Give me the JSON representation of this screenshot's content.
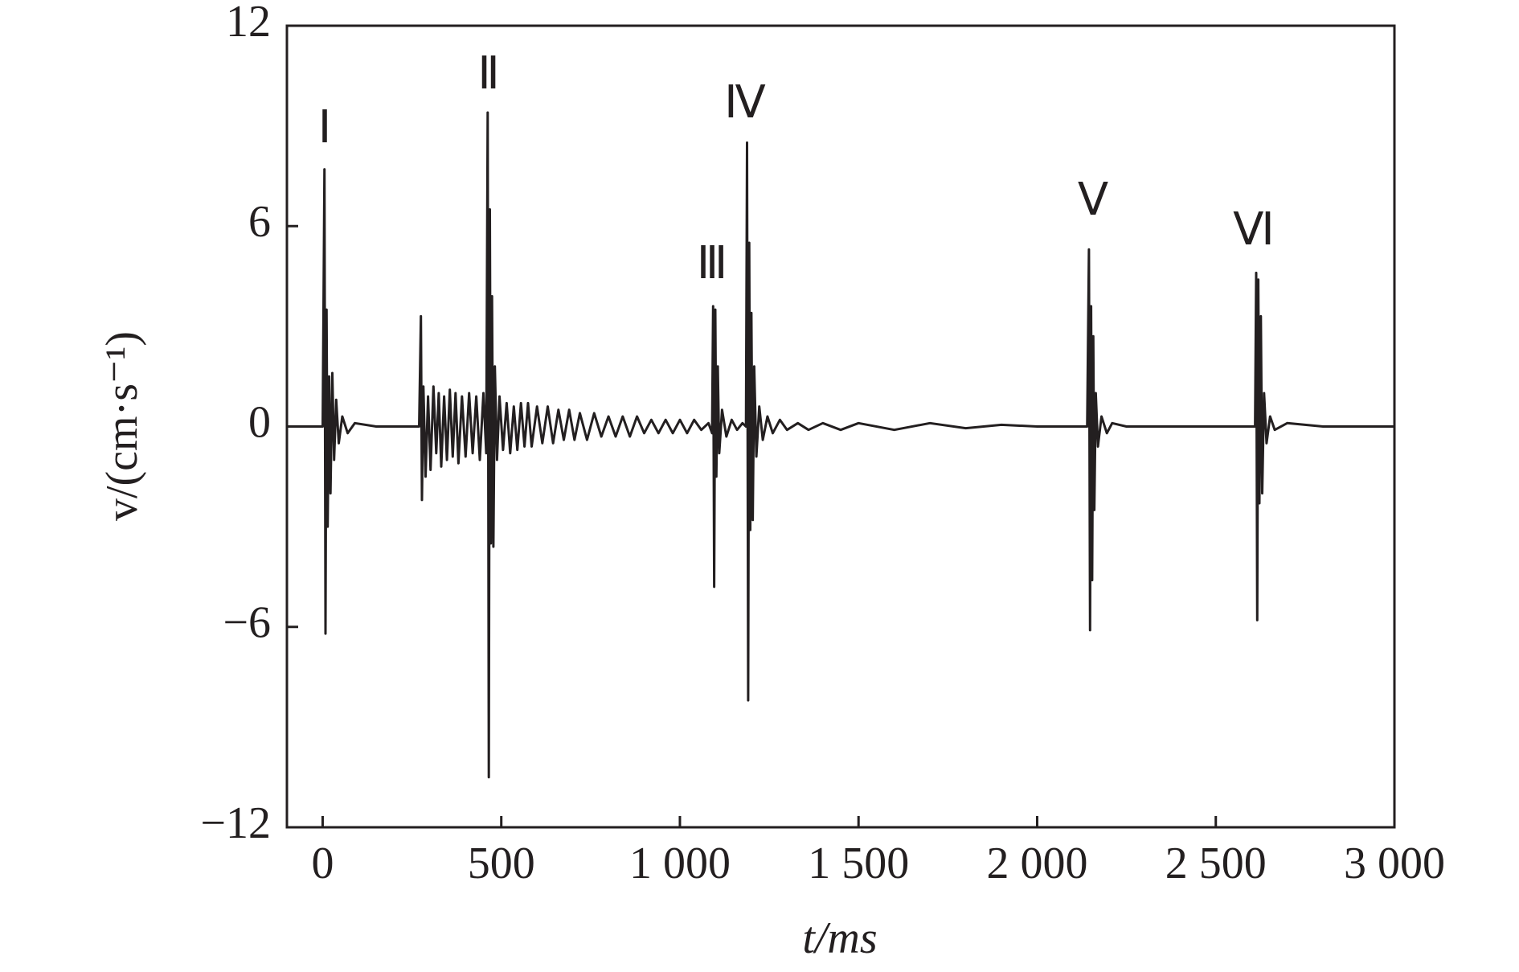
{
  "chart_data": {
    "type": "line",
    "x_label": "t/ms",
    "y_label": "v/(cm·s⁻¹)",
    "annotations": [
      "Ⅰ",
      "Ⅱ",
      "Ⅲ",
      "Ⅳ",
      "Ⅴ",
      "Ⅵ"
    ],
    "color": "#231f20",
    "x": [
      -100,
      -50,
      0,
      5,
      8,
      11,
      14,
      18,
      22,
      27,
      32,
      38,
      45,
      55,
      70,
      90,
      150,
      200,
      270,
      275,
      278,
      282,
      288,
      295,
      302,
      310,
      318,
      325,
      332,
      340,
      348,
      356,
      364,
      372,
      380,
      390,
      400,
      410,
      420,
      430,
      440,
      450,
      458,
      462,
      465,
      468,
      471,
      474,
      478,
      482,
      488,
      495,
      505,
      515,
      525,
      535,
      545,
      555,
      565,
      575,
      585,
      600,
      615,
      630,
      645,
      660,
      675,
      690,
      705,
      720,
      740,
      760,
      780,
      800,
      820,
      840,
      860,
      880,
      900,
      920,
      940,
      960,
      980,
      1000,
      1020,
      1040,
      1060,
      1080,
      1090,
      1093,
      1096,
      1099,
      1102,
      1106,
      1110,
      1118,
      1130,
      1145,
      1160,
      1175,
      1185,
      1188,
      1191,
      1194,
      1197,
      1200,
      1204,
      1208,
      1214,
      1222,
      1232,
      1245,
      1260,
      1280,
      1300,
      1330,
      1360,
      1400,
      1450,
      1500,
      1600,
      1700,
      1800,
      1900,
      2000,
      2100,
      2140,
      2145,
      2148,
      2151,
      2154,
      2157,
      2160,
      2164,
      2170,
      2180,
      2195,
      2210,
      2250,
      2400,
      2600,
      2610,
      2613,
      2616,
      2619,
      2622,
      2626,
      2630,
      2635,
      2642,
      2652,
      2665,
      2700,
      2800,
      3000
    ],
    "values": [
      0,
      0,
      0,
      7.7,
      -6.2,
      3.5,
      -3.0,
      1.5,
      -2,
      1.6,
      -1,
      0.8,
      -0.5,
      0.3,
      -0.2,
      0.1,
      0,
      0,
      0,
      3.3,
      -2.2,
      1.2,
      -1.5,
      0.9,
      -1.3,
      1.2,
      -0.8,
      1.0,
      -1.2,
      0.9,
      -1.0,
      1.1,
      -0.9,
      1.0,
      -1.1,
      0.9,
      -0.9,
      1.0,
      -0.8,
      0.9,
      -1.0,
      1.0,
      -0.8,
      9.4,
      -10.5,
      6.5,
      -3.5,
      3.9,
      -3.6,
      1.8,
      -1.0,
      0.9,
      -0.7,
      0.7,
      -0.8,
      0.6,
      -0.7,
      0.7,
      -0.6,
      0.7,
      -0.6,
      0.6,
      -0.5,
      0.6,
      -0.5,
      0.5,
      -0.4,
      0.5,
      -0.4,
      0.4,
      -0.4,
      0.4,
      -0.3,
      0.3,
      -0.3,
      0.3,
      -0.3,
      0.3,
      -0.2,
      0.2,
      -0.2,
      0.2,
      -0.2,
      0.2,
      -0.2,
      0.2,
      -0.1,
      0.1,
      -0.2,
      3.6,
      -4.8,
      3.5,
      -1.5,
      1.8,
      -0.8,
      0.5,
      -0.3,
      0.2,
      -0.1,
      0.1,
      0,
      8.5,
      -8.2,
      5.5,
      -3.1,
      3.4,
      -2.8,
      1.8,
      -0.9,
      0.6,
      -0.4,
      0.3,
      -0.2,
      0.2,
      -0.1,
      0.1,
      -0.1,
      0.1,
      -0.1,
      0.1,
      -0.1,
      0.1,
      -0.05,
      0.05,
      0,
      0,
      0,
      5.3,
      -6.1,
      3.6,
      -4.6,
      2.7,
      -2.5,
      1.0,
      -0.6,
      0.3,
      -0.2,
      0.1,
      0,
      0,
      0,
      0,
      4.6,
      -5.8,
      4.4,
      -2.3,
      3.3,
      -2.0,
      1.0,
      -0.5,
      0.3,
      -0.1,
      0.1,
      0,
      0
    ],
    "xlim": [
      -100,
      3000
    ],
    "ylim": [
      -12,
      12
    ],
    "xticks": [
      0,
      500,
      {
        "value": 1000,
        "label": "1 000"
      },
      {
        "value": 1500,
        "label": "1 500"
      },
      {
        "value": 2000,
        "label": "2 000"
      },
      {
        "value": 2500,
        "label": "2 500"
      },
      {
        "value": 3000,
        "label": "3 000"
      }
    ],
    "yticks": [
      {
        "value": -12,
        "label": "−12"
      },
      {
        "value": -6,
        "label": "−6"
      },
      0,
      6,
      12
    ]
  }
}
